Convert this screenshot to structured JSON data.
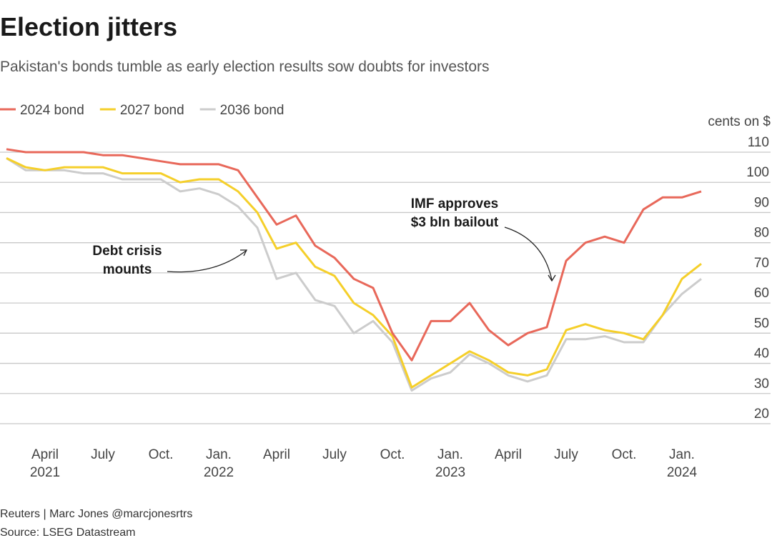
{
  "chart_data": {
    "type": "line",
    "title": "Election jitters",
    "subtitle": "Pakistan's bonds tumble as early election results sow doubts for investors",
    "y_label": "cents on $",
    "x": [
      "2021-02",
      "2021-03",
      "2021-04",
      "2021-05",
      "2021-06",
      "2021-07",
      "2021-08",
      "2021-09",
      "2021-10",
      "2021-11",
      "2021-12",
      "2022-01",
      "2022-02",
      "2022-03",
      "2022-04",
      "2022-05",
      "2022-06",
      "2022-07",
      "2022-08",
      "2022-09",
      "2022-10",
      "2022-11",
      "2022-12",
      "2023-01",
      "2023-02",
      "2023-03",
      "2023-04",
      "2023-05",
      "2023-06",
      "2023-07",
      "2023-08",
      "2023-09",
      "2023-10",
      "2023-11",
      "2023-12",
      "2024-01",
      "2024-02"
    ],
    "series": [
      {
        "name": "2024 bond",
        "color": "#e8685a",
        "values": [
          111,
          110,
          110,
          110,
          110,
          109,
          109,
          108,
          107,
          106,
          106,
          106,
          104,
          95,
          86,
          89,
          79,
          75,
          68,
          65,
          50,
          41,
          54,
          54,
          60,
          51,
          46,
          50,
          52,
          74,
          80,
          82,
          80,
          91,
          95,
          95,
          97
        ]
      },
      {
        "name": "2027 bond",
        "color": "#f5cf2a",
        "values": [
          108,
          105,
          104,
          105,
          105,
          105,
          103,
          103,
          103,
          100,
          101,
          101,
          97,
          90,
          78,
          80,
          72,
          69,
          60,
          56,
          49,
          32,
          36,
          40,
          44,
          41,
          37,
          36,
          38,
          51,
          53,
          51,
          50,
          48,
          56,
          68,
          73
        ]
      },
      {
        "name": "2036 bond",
        "color": "#cccccc",
        "values": [
          108,
          104,
          104,
          104,
          103,
          103,
          101,
          101,
          101,
          97,
          98,
          96,
          92,
          85,
          68,
          70,
          61,
          59,
          50,
          54,
          47,
          31,
          35,
          37,
          43,
          40,
          36,
          34,
          36,
          48,
          48,
          49,
          47,
          47,
          56,
          63,
          68
        ]
      }
    ],
    "xlim": [
      "2021-02",
      "2024-02"
    ],
    "xticks": [
      {
        "value": "2021-04",
        "label": "April 2021"
      },
      {
        "value": "2021-07",
        "label": "July"
      },
      {
        "value": "2021-10",
        "label": "Oct."
      },
      {
        "value": "2022-01",
        "label": "Jan. 2022"
      },
      {
        "value": "2022-04",
        "label": "April"
      },
      {
        "value": "2022-07",
        "label": "July"
      },
      {
        "value": "2022-10",
        "label": "Oct."
      },
      {
        "value": "2023-01",
        "label": "Jan. 2023"
      },
      {
        "value": "2023-04",
        "label": "April"
      },
      {
        "value": "2023-07",
        "label": "July"
      },
      {
        "value": "2023-10",
        "label": "Oct."
      },
      {
        "value": "2024-01",
        "label": "Jan. 2024"
      }
    ],
    "ylim": [
      20,
      110
    ],
    "yticks": [
      20,
      30,
      40,
      50,
      60,
      70,
      80,
      90,
      100,
      110
    ],
    "grid": true,
    "legend": "top-left",
    "annotations": [
      {
        "lines": [
          "Debt crisis",
          "mounts"
        ]
      },
      {
        "lines": [
          "IMF approves",
          "$3 bln bailout"
        ]
      }
    ],
    "credit": "Reuters | Marc Jones @marcjonesrtrs",
    "source": "Source: LSEG Datastream"
  }
}
